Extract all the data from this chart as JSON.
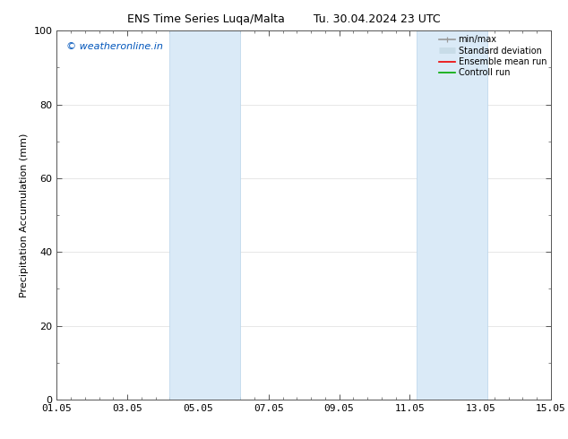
{
  "title_left": "ENS Time Series Luqa/Malta",
  "title_right": "Tu. 30.04.2024 23 UTC",
  "ylabel": "Precipitation Accumulation (mm)",
  "ylim": [
    0,
    100
  ],
  "yticks": [
    0,
    20,
    40,
    60,
    80,
    100
  ],
  "xtick_labels": [
    "01.05",
    "03.05",
    "05.05",
    "07.05",
    "09.05",
    "11.05",
    "13.05",
    "15.05"
  ],
  "xtick_positions": [
    0,
    2,
    4,
    6,
    8,
    10,
    12,
    14
  ],
  "xlim": [
    0,
    14
  ],
  "shaded_bands": [
    {
      "x_start": 3.2,
      "x_end": 5.2
    },
    {
      "x_start": 10.2,
      "x_end": 12.2
    }
  ],
  "shade_color": "#daeaf7",
  "shade_edge_color": "#b8d4ea",
  "watermark_text": "© weatheronline.in",
  "watermark_color": "#0055bb",
  "legend_items": [
    {
      "label": "min/max",
      "color": "#999999",
      "lw": 1.2,
      "style": "line_with_cap"
    },
    {
      "label": "Standard deviation",
      "color": "#c8dce8",
      "lw": 5,
      "style": "thick_line"
    },
    {
      "label": "Ensemble mean run",
      "color": "#ee0000",
      "lw": 1.2,
      "style": "line"
    },
    {
      "label": "Controll run",
      "color": "#00aa00",
      "lw": 1.2,
      "style": "line"
    }
  ],
  "bg_color": "white",
  "grid_color": "#dddddd",
  "font_size": 8,
  "title_font_size": 9,
  "spine_color": "#555555",
  "minor_tick_count": 4
}
